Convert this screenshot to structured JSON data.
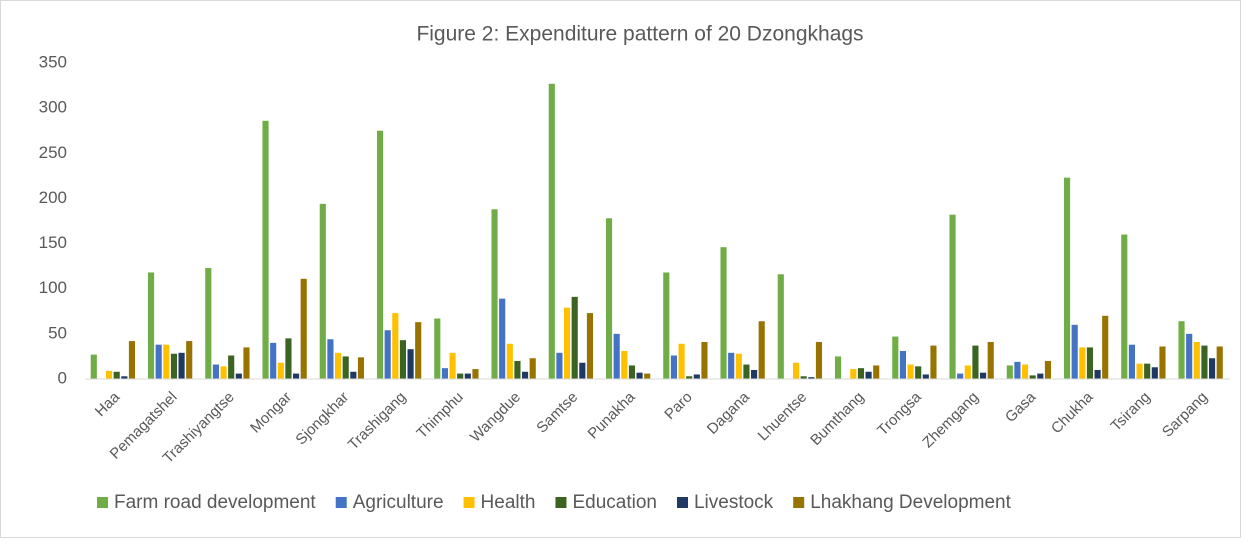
{
  "chart_data": {
    "type": "bar",
    "title": "Figure 2: Expenditure pattern of 20 Dzongkhags",
    "categories": [
      "Haa",
      "Pemagatshel",
      "Trashiyangtse",
      "Mongar",
      "Sjongkhar",
      "Trashigang",
      "Thimphu",
      "Wangdue",
      "Samtse",
      "Punakha",
      "Paro",
      "Dagana",
      "Lhuentse",
      "Bumthang",
      "Trongsa",
      "Zhemgang",
      "Gasa",
      "Chukha",
      "Tsirang",
      "Sarpang"
    ],
    "series": [
      {
        "name": "Farm road development",
        "color": "#70ad47",
        "values": [
          27,
          118,
          123,
          286,
          194,
          275,
          67,
          188,
          327,
          178,
          118,
          146,
          116,
          25,
          47,
          182,
          15,
          223,
          160,
          64
        ]
      },
      {
        "name": "Agriculture",
        "color": "#4472c4",
        "values": [
          0,
          38,
          16,
          40,
          44,
          54,
          12,
          89,
          29,
          50,
          26,
          29,
          0,
          0,
          31,
          6,
          19,
          60,
          38,
          50
        ]
      },
      {
        "name": "Health",
        "color": "#ffc000",
        "values": [
          9,
          38,
          14,
          18,
          29,
          73,
          29,
          39,
          79,
          31,
          39,
          28,
          18,
          11,
          16,
          15,
          16,
          35,
          17,
          41
        ]
      },
      {
        "name": "Education",
        "color": "#3b6321",
        "values": [
          8,
          28,
          26,
          45,
          25,
          43,
          6,
          20,
          91,
          15,
          3,
          16,
          3,
          12,
          14,
          37,
          4,
          35,
          17,
          37
        ]
      },
      {
        "name": "Livestock",
        "color": "#203864",
        "values": [
          3,
          29,
          6,
          6,
          8,
          33,
          6,
          8,
          18,
          7,
          5,
          10,
          2,
          8,
          5,
          7,
          6,
          10,
          13,
          23
        ]
      },
      {
        "name": "Lhakhang Development",
        "color": "#997300",
        "values": [
          42,
          42,
          35,
          111,
          24,
          63,
          11,
          23,
          73,
          6,
          41,
          64,
          41,
          15,
          37,
          41,
          20,
          70,
          36,
          36
        ]
      }
    ],
    "ylim": [
      0,
      350
    ],
    "yticks": [
      0,
      50,
      100,
      150,
      200,
      250,
      300,
      350
    ],
    "grid": false,
    "legend": "bottom"
  }
}
